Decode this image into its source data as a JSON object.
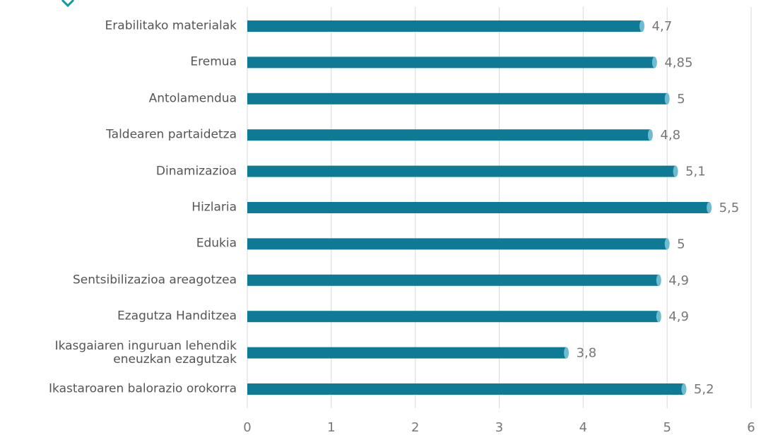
{
  "chart_data": {
    "type": "hbar",
    "categories": [
      "Erabilitako materialak",
      "Eremua",
      "Antolamendua",
      "Taldearen partaidetza",
      "Dinamizazioa",
      "Hizlaria",
      "Edukia",
      "Sentsibilizazioa areagotzea",
      "Ezagutza Handitzea",
      "Ikasgaiaren inguruan lehendik\neneuzkan ezagutzak",
      "Ikastaroaren balorazio orokorra"
    ],
    "values": [
      4.7,
      4.85,
      5,
      4.8,
      5.1,
      5.5,
      5,
      4.9,
      4.9,
      3.8,
      5.2
    ],
    "value_labels": [
      "4,7",
      "4,85",
      "5",
      "4,8",
      "5,1",
      "5,5",
      "5",
      "4,9",
      "4,9",
      "3,8",
      "5,2"
    ],
    "color": "#0e7a96",
    "xlim": [
      0,
      6
    ],
    "xticks": [
      0,
      1,
      2,
      3,
      4,
      5,
      6
    ],
    "grid": true
  }
}
